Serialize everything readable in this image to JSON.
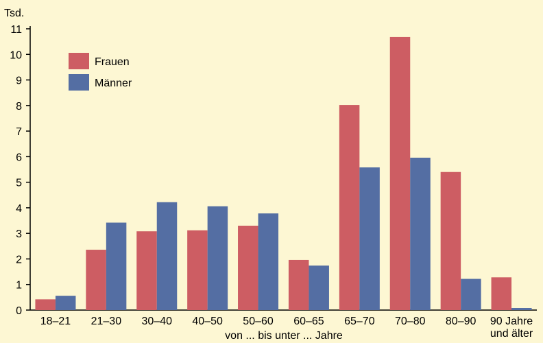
{
  "chart_data": {
    "type": "bar",
    "unit_label": "Tsd.",
    "xlabel": "von ... bis unter ... Jahre",
    "categories": [
      [
        "18–21"
      ],
      [
        "21–30"
      ],
      [
        "30–40"
      ],
      [
        "40–50"
      ],
      [
        "50–60"
      ],
      [
        "60–65"
      ],
      [
        "65–70"
      ],
      [
        "70–80"
      ],
      [
        "80–90"
      ],
      [
        "90 Jahre",
        "und älter"
      ]
    ],
    "ylim": [
      0,
      11
    ],
    "yticks": [
      0,
      1,
      2,
      3,
      4,
      5,
      6,
      7,
      8,
      9,
      10,
      11
    ],
    "grid": false,
    "legend_position": "top-left",
    "series": [
      {
        "name": "Frauen",
        "color": "#cd5d63",
        "values": [
          0.42,
          2.36,
          3.08,
          3.12,
          3.3,
          1.96,
          8.02,
          10.68,
          5.4,
          1.28
        ]
      },
      {
        "name": "Männer",
        "color": "#546ea3",
        "values": [
          0.56,
          3.42,
          4.22,
          4.06,
          3.78,
          1.74,
          5.58,
          5.96,
          1.22,
          0.08
        ]
      }
    ]
  }
}
